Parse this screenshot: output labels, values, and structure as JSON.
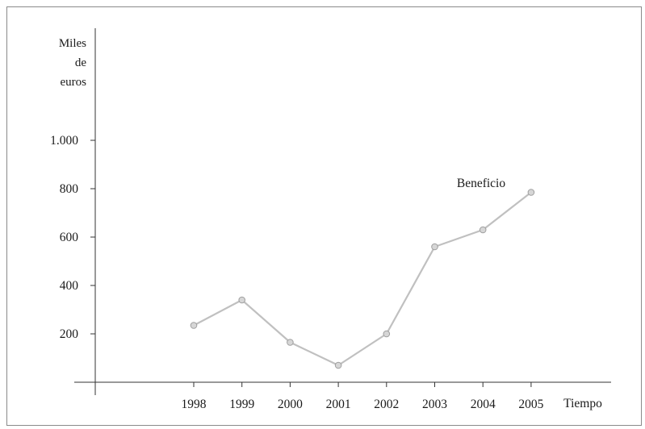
{
  "chart_data": {
    "type": "line",
    "ylabel_lines": [
      "Miles",
      "de",
      "euros"
    ],
    "xlabel": "Tiempo",
    "x": [
      "1998",
      "1999",
      "2000",
      "2001",
      "2002",
      "2003",
      "2004",
      "2005"
    ],
    "y_ticks": [
      {
        "value": 200,
        "label": "200"
      },
      {
        "value": 400,
        "label": "400"
      },
      {
        "value": 600,
        "label": "600"
      },
      {
        "value": 800,
        "label": "800"
      },
      {
        "value": 1000,
        "label": "1.000"
      }
    ],
    "ylim": [
      0,
      1000
    ],
    "series": [
      {
        "name": "Beneficio",
        "values": [
          235,
          340,
          165,
          70,
          200,
          560,
          630,
          785
        ]
      }
    ],
    "line_color": "#c0c0c0",
    "marker_fill": "#d6d6d6",
    "marker_stroke": "#9e9e9e",
    "axis_color": "#333333",
    "grid": false,
    "legend": "none"
  }
}
